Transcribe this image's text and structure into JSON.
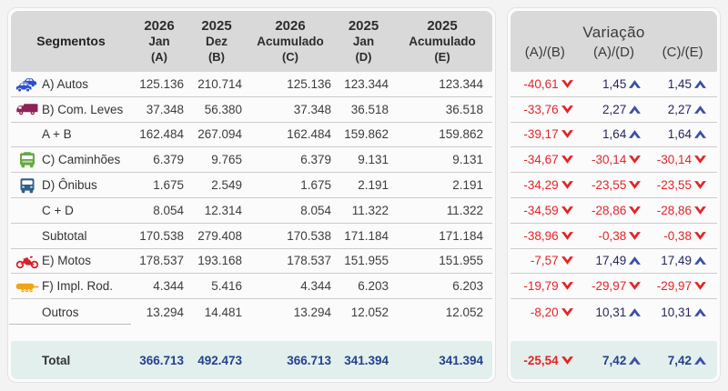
{
  "colors": {
    "negative_red": "#E32528",
    "positive_navy": "#26275E",
    "up_arrow_blue": "#3B50A5",
    "total_navy": "#24418E",
    "total_bg": "#E2EFEC",
    "header_bg": "#D9D9D9",
    "icon_autos": "#2B50CC",
    "icon_com_leves": "#8E2157",
    "icon_caminhoes": "#67A844",
    "icon_onibus": "#2C5F8A",
    "icon_motos": "#D5222B",
    "icon_impl_rod": "#EFA50F"
  },
  "left_panel": {
    "corner_label": "Segmentos",
    "columns": [
      {
        "line1": "2026",
        "line2": "Jan",
        "line3": "(A)"
      },
      {
        "line1": "2025",
        "line2": "Dez",
        "line3": "(B)"
      },
      {
        "line1": "2026",
        "line2": "Acumulado",
        "line3": "(C)"
      },
      {
        "line1": "2025",
        "line2": "Jan",
        "line3": "(D)"
      },
      {
        "line1": "2025",
        "line2": "Acumulado",
        "line3": "(E)"
      }
    ],
    "rows": [
      {
        "icon": "autos-icon",
        "label": "A) Autos",
        "values": [
          "125.136",
          "210.714",
          "125.136",
          "123.344",
          "123.344"
        ]
      },
      {
        "icon": "com-leves-icon",
        "label": "B) Com. Leves",
        "values": [
          "37.348",
          "56.380",
          "37.348",
          "36.518",
          "36.518"
        ]
      },
      {
        "icon": null,
        "label": "A + B",
        "values": [
          "162.484",
          "267.094",
          "162.484",
          "159.862",
          "159.862"
        ]
      },
      {
        "icon": "caminhoes-icon",
        "label": "C) Caminhões",
        "values": [
          "6.379",
          "9.765",
          "6.379",
          "9.131",
          "9.131"
        ]
      },
      {
        "icon": "onibus-icon",
        "label": "D) Ônibus",
        "values": [
          "1.675",
          "2.549",
          "1.675",
          "2.191",
          "2.191"
        ]
      },
      {
        "icon": null,
        "label": "C + D",
        "values": [
          "8.054",
          "12.314",
          "8.054",
          "11.322",
          "11.322"
        ]
      },
      {
        "icon": null,
        "label": "Subtotal",
        "values": [
          "170.538",
          "279.408",
          "170.538",
          "171.184",
          "171.184"
        ]
      },
      {
        "icon": "motos-icon",
        "label": "E) Motos",
        "values": [
          "178.537",
          "193.168",
          "178.537",
          "151.955",
          "151.955"
        ]
      },
      {
        "icon": "impl-rod-icon",
        "label": "F) Impl. Rod.",
        "values": [
          "4.344",
          "5.416",
          "4.344",
          "6.203",
          "6.203"
        ]
      },
      {
        "icon": null,
        "label": "Outros",
        "values": [
          "13.294",
          "14.481",
          "13.294",
          "12.052",
          "12.052"
        ],
        "partial_rule": true
      }
    ],
    "total": {
      "label": "Total",
      "values": [
        "366.713",
        "492.473",
        "366.713",
        "341.394",
        "341.394"
      ]
    }
  },
  "right_panel": {
    "title": "Variação",
    "columns": [
      "(A)/(B)",
      "(A)/(D)",
      "(C)/(E)"
    ],
    "rows": [
      [
        {
          "v": "-40,61",
          "d": "down"
        },
        {
          "v": "1,45",
          "d": "up"
        },
        {
          "v": "1,45",
          "d": "up"
        }
      ],
      [
        {
          "v": "-33,76",
          "d": "down"
        },
        {
          "v": "2,27",
          "d": "up"
        },
        {
          "v": "2,27",
          "d": "up"
        }
      ],
      [
        {
          "v": "-39,17",
          "d": "down"
        },
        {
          "v": "1,64",
          "d": "up"
        },
        {
          "v": "1,64",
          "d": "up"
        }
      ],
      [
        {
          "v": "-34,67",
          "d": "down"
        },
        {
          "v": "-30,14",
          "d": "down"
        },
        {
          "v": "-30,14",
          "d": "down"
        }
      ],
      [
        {
          "v": "-34,29",
          "d": "down"
        },
        {
          "v": "-23,55",
          "d": "down"
        },
        {
          "v": "-23,55",
          "d": "down"
        }
      ],
      [
        {
          "v": "-34,59",
          "d": "down"
        },
        {
          "v": "-28,86",
          "d": "down"
        },
        {
          "v": "-28,86",
          "d": "down"
        }
      ],
      [
        {
          "v": "-38,96",
          "d": "down"
        },
        {
          "v": "-0,38",
          "d": "down"
        },
        {
          "v": "-0,38",
          "d": "down"
        }
      ],
      [
        {
          "v": "-7,57",
          "d": "down"
        },
        {
          "v": "17,49",
          "d": "up"
        },
        {
          "v": "17,49",
          "d": "up"
        }
      ],
      [
        {
          "v": "-19,79",
          "d": "down"
        },
        {
          "v": "-29,97",
          "d": "down"
        },
        {
          "v": "-29,97",
          "d": "down"
        }
      ],
      [
        {
          "v": "-8,20",
          "d": "down"
        },
        {
          "v": "10,31",
          "d": "up"
        },
        {
          "v": "10,31",
          "d": "up"
        }
      ]
    ],
    "total": [
      {
        "v": "-25,54",
        "d": "down"
      },
      {
        "v": "7,42",
        "d": "up"
      },
      {
        "v": "7,42",
        "d": "up"
      }
    ]
  },
  "chart_data": {
    "type": "table",
    "title": "",
    "columns": [
      "Segmentos",
      "2026 Jan (A)",
      "2025 Dez (B)",
      "2026 Acumulado (C)",
      "2025 Jan (D)",
      "2025 Acumulado (E)",
      "Variação (A)/(B)",
      "Variação (A)/(D)",
      "Variação (C)/(E)"
    ],
    "rows": [
      [
        "A) Autos",
        125136,
        210714,
        125136,
        123344,
        123344,
        -40.61,
        1.45,
        1.45
      ],
      [
        "B) Com. Leves",
        37348,
        56380,
        37348,
        36518,
        36518,
        -33.76,
        2.27,
        2.27
      ],
      [
        "A + B",
        162484,
        267094,
        162484,
        159862,
        159862,
        -39.17,
        1.64,
        1.64
      ],
      [
        "C) Caminhões",
        6379,
        9765,
        6379,
        9131,
        9131,
        -34.67,
        -30.14,
        -30.14
      ],
      [
        "D) Ônibus",
        1675,
        2549,
        1675,
        2191,
        2191,
        -34.29,
        -23.55,
        -23.55
      ],
      [
        "C + D",
        8054,
        12314,
        8054,
        11322,
        11322,
        -34.59,
        -28.86,
        -28.86
      ],
      [
        "Subtotal",
        170538,
        279408,
        170538,
        171184,
        171184,
        -38.96,
        -0.38,
        -0.38
      ],
      [
        "E) Motos",
        178537,
        193168,
        178537,
        151955,
        151955,
        -7.57,
        17.49,
        17.49
      ],
      [
        "F) Impl. Rod.",
        4344,
        5416,
        4344,
        6203,
        6203,
        -19.79,
        -29.97,
        -29.97
      ],
      [
        "Outros",
        13294,
        14481,
        13294,
        12052,
        12052,
        -8.2,
        10.31,
        10.31
      ],
      [
        "Total",
        366713,
        492473,
        366713,
        341394,
        341394,
        -25.54,
        7.42,
        7.42
      ]
    ]
  }
}
